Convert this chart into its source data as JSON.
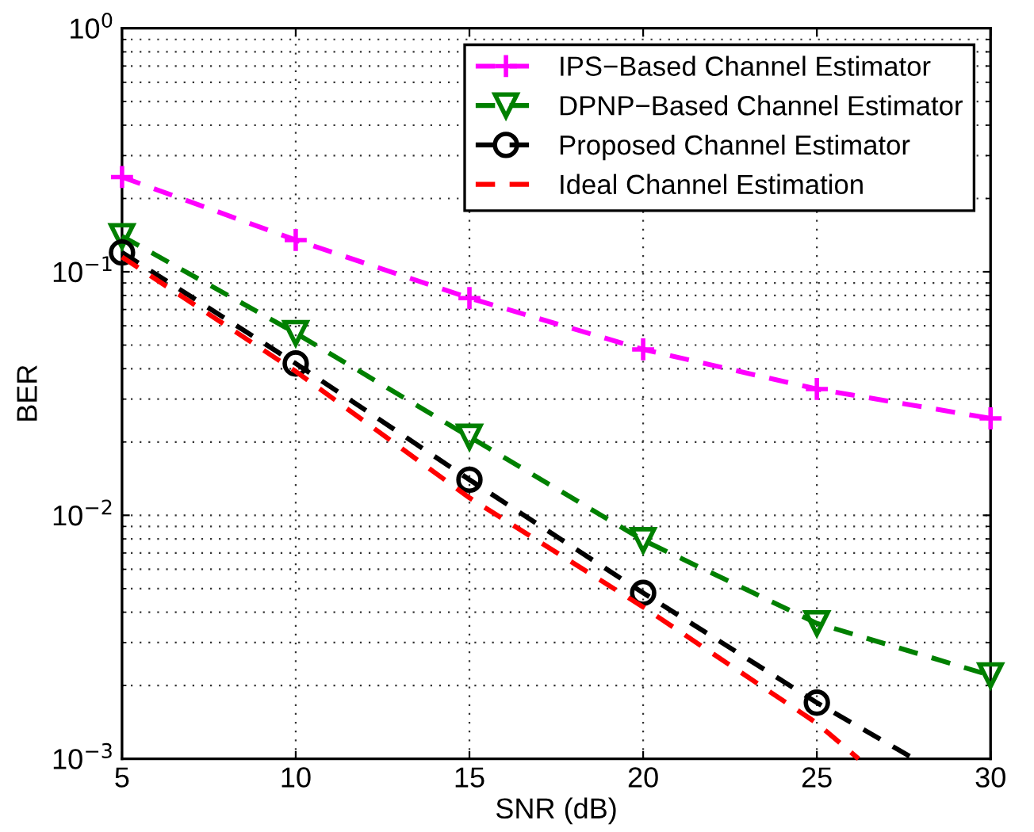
{
  "chart_data": {
    "type": "line",
    "xlabel": "SNR (dB)",
    "ylabel": "BER",
    "log": "y",
    "grid": true,
    "legend": "top right",
    "line_style": "dashed",
    "xlim": [
      5,
      30
    ],
    "xticks": [
      5,
      10,
      15,
      20,
      25,
      30
    ],
    "ylim": [
      0.001,
      1
    ],
    "yticks": [
      {
        "value": 0.001,
        "label": "10$^{−3}$"
      },
      {
        "value": 0.01,
        "label": "10$^{−2}$"
      },
      {
        "value": 0.1,
        "label": "10$^{−1}$"
      },
      {
        "value": 1,
        "label": "10$^{0}$"
      }
    ],
    "series": [
      {
        "name": "IPS−Based Channel Estimator",
        "color": "#ff00ff",
        "marker": "cross",
        "x": [
          5,
          10,
          15,
          20,
          25,
          30
        ],
        "values": [
          0.245,
          0.135,
          0.078,
          0.048,
          0.033,
          0.025
        ]
      },
      {
        "name": "DPNP−Based Channel Estimator",
        "color": "#008000",
        "marker": "triangle",
        "x": [
          5,
          10,
          15,
          20,
          25,
          30
        ],
        "values": [
          0.14,
          0.056,
          0.021,
          0.0079,
          0.0036,
          0.0022
        ]
      },
      {
        "name": "Proposed Channel Estimator",
        "color": "#000000",
        "marker": "circle",
        "x": [
          5,
          10,
          15,
          20,
          25,
          27.8
        ],
        "values": [
          0.12,
          0.042,
          0.014,
          0.0048,
          0.0017,
          0.001
        ]
      },
      {
        "name": "Ideal Channel Estimation",
        "color": "#ff0000",
        "marker": "none",
        "x": [
          5,
          10,
          15,
          20,
          25,
          26.2
        ],
        "values": [
          0.115,
          0.039,
          0.0118,
          0.0042,
          0.0014,
          0.001
        ]
      }
    ]
  }
}
